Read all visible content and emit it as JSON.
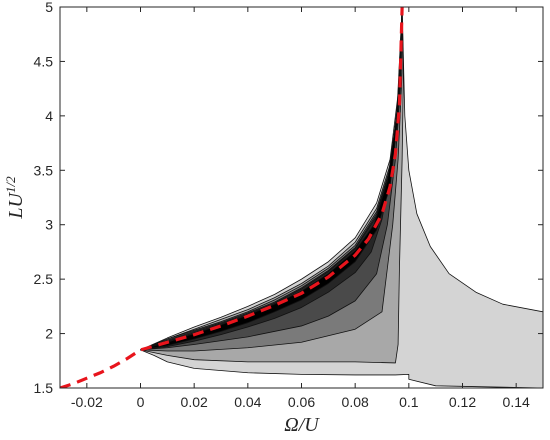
{
  "chart_data": {
    "type": "area",
    "title": "",
    "xlabel": "Ω/U",
    "ylabel_main": "LU",
    "ylabel_exp": "1/2",
    "xlim": [
      -0.03,
      0.15
    ],
    "ylim": [
      1.5,
      5
    ],
    "xticks": [
      -0.02,
      0,
      0.02,
      0.04,
      0.06,
      0.08,
      0.1,
      0.12,
      0.14
    ],
    "xtick_labels": [
      "-0.02",
      "0",
      "0.02",
      "0.04",
      "0.06",
      "0.08",
      "0.1",
      "0.12",
      "0.14"
    ],
    "yticks": [
      1.5,
      2,
      2.5,
      3,
      3.5,
      4,
      4.5,
      5
    ],
    "ytick_labels": [
      "1.5",
      "2",
      "2.5",
      "3",
      "3.5",
      "4",
      "4.5",
      "5"
    ],
    "grid": false,
    "legend": "none",
    "cusp_point": [
      0,
      1.85
    ],
    "contour_levels": [
      {
        "color": "#d4d4d4",
        "lower": [
          [
            0,
            1.85
          ],
          [
            0.005,
            1.8
          ],
          [
            0.01,
            1.74
          ],
          [
            0.02,
            1.68
          ],
          [
            0.04,
            1.64
          ],
          [
            0.06,
            1.625
          ],
          [
            0.08,
            1.62
          ],
          [
            0.095,
            1.62
          ],
          [
            0.1,
            1.625
          ]
        ],
        "upper": [
          [
            0,
            1.85
          ],
          [
            0.01,
            1.96
          ],
          [
            0.02,
            2.06
          ],
          [
            0.03,
            2.15
          ],
          [
            0.04,
            2.25
          ],
          [
            0.05,
            2.36
          ],
          [
            0.06,
            2.5
          ],
          [
            0.07,
            2.66
          ],
          [
            0.08,
            2.88
          ],
          [
            0.088,
            3.2
          ],
          [
            0.093,
            3.6
          ],
          [
            0.096,
            4.2
          ],
          [
            0.0975,
            5.0
          ]
        ],
        "right": [
          [
            0.0975,
            5.0
          ],
          [
            0.0985,
            4.0
          ],
          [
            0.1,
            3.5
          ],
          [
            0.103,
            3.1
          ],
          [
            0.108,
            2.8
          ],
          [
            0.115,
            2.55
          ],
          [
            0.125,
            2.38
          ],
          [
            0.135,
            2.27
          ],
          [
            0.15,
            2.2
          ],
          [
            0.15,
            1.5
          ],
          [
            0.11,
            1.52
          ],
          [
            0.1,
            1.58
          ]
        ]
      },
      {
        "color": "#a8a8a8",
        "lower": [
          [
            0,
            1.85
          ],
          [
            0.01,
            1.8
          ],
          [
            0.02,
            1.76
          ],
          [
            0.04,
            1.74
          ],
          [
            0.06,
            1.74
          ],
          [
            0.08,
            1.74
          ],
          [
            0.095,
            1.73
          ]
        ],
        "upper": [
          [
            0,
            1.85
          ],
          [
            0.01,
            1.95
          ],
          [
            0.02,
            2.04
          ],
          [
            0.03,
            2.13
          ],
          [
            0.04,
            2.22
          ],
          [
            0.05,
            2.33
          ],
          [
            0.06,
            2.46
          ],
          [
            0.07,
            2.62
          ],
          [
            0.08,
            2.84
          ],
          [
            0.088,
            3.15
          ],
          [
            0.093,
            3.55
          ],
          [
            0.0965,
            4.2
          ],
          [
            0.0975,
            5.0
          ]
        ],
        "right": [
          [
            0.0975,
            5.0
          ],
          [
            0.098,
            4.4
          ],
          [
            0.0975,
            3.6
          ],
          [
            0.0965,
            2.6
          ],
          [
            0.096,
            1.9
          ],
          [
            0.095,
            1.73
          ]
        ]
      },
      {
        "color": "#7a7a7a",
        "lower": [
          [
            0,
            1.85
          ],
          [
            0.01,
            1.84
          ],
          [
            0.02,
            1.84
          ],
          [
            0.04,
            1.87
          ],
          [
            0.06,
            1.92
          ],
          [
            0.08,
            2.04
          ],
          [
            0.09,
            2.2
          ]
        ],
        "upper": [
          [
            0,
            1.85
          ],
          [
            0.01,
            1.95
          ],
          [
            0.02,
            2.03
          ],
          [
            0.03,
            2.11
          ],
          [
            0.04,
            2.2
          ],
          [
            0.05,
            2.31
          ],
          [
            0.06,
            2.44
          ],
          [
            0.07,
            2.6
          ],
          [
            0.08,
            2.81
          ],
          [
            0.088,
            3.12
          ],
          [
            0.093,
            3.52
          ],
          [
            0.0965,
            4.2
          ],
          [
            0.0975,
            5.0
          ]
        ],
        "right": [
          [
            0.0975,
            5.0
          ],
          [
            0.0975,
            4.4
          ],
          [
            0.096,
            3.6
          ],
          [
            0.094,
            3.0
          ],
          [
            0.092,
            2.6
          ],
          [
            0.09,
            2.2
          ]
        ]
      },
      {
        "color": "#4a4a4a",
        "lower": [
          [
            0,
            1.85
          ],
          [
            0.01,
            1.87
          ],
          [
            0.02,
            1.9
          ],
          [
            0.04,
            1.97
          ],
          [
            0.06,
            2.07
          ],
          [
            0.07,
            2.16
          ],
          [
            0.08,
            2.3
          ],
          [
            0.088,
            2.55
          ]
        ],
        "upper": [
          [
            0,
            1.85
          ],
          [
            0.01,
            1.94
          ],
          [
            0.02,
            2.02
          ],
          [
            0.03,
            2.1
          ],
          [
            0.04,
            2.19
          ],
          [
            0.05,
            2.29
          ],
          [
            0.06,
            2.42
          ],
          [
            0.07,
            2.58
          ],
          [
            0.08,
            2.79
          ],
          [
            0.088,
            3.1
          ],
          [
            0.093,
            3.5
          ],
          [
            0.0965,
            4.2
          ],
          [
            0.0975,
            5.0
          ]
        ],
        "right": [
          [
            0.0975,
            5.0
          ],
          [
            0.097,
            4.3
          ],
          [
            0.095,
            3.6
          ],
          [
            0.092,
            3.0
          ],
          [
            0.088,
            2.55
          ]
        ]
      },
      {
        "color": "#262626",
        "lower": [
          [
            0,
            1.85
          ],
          [
            0.01,
            1.88
          ],
          [
            0.02,
            1.93
          ],
          [
            0.03,
            1.99
          ],
          [
            0.04,
            2.06
          ],
          [
            0.05,
            2.14
          ],
          [
            0.06,
            2.24
          ],
          [
            0.07,
            2.38
          ],
          [
            0.08,
            2.56
          ],
          [
            0.086,
            2.75
          ]
        ],
        "upper": [
          [
            0,
            1.85
          ],
          [
            0.01,
            1.93
          ],
          [
            0.02,
            2.01
          ],
          [
            0.03,
            2.09
          ],
          [
            0.04,
            2.18
          ],
          [
            0.05,
            2.28
          ],
          [
            0.06,
            2.41
          ],
          [
            0.07,
            2.57
          ],
          [
            0.08,
            2.78
          ],
          [
            0.088,
            3.08
          ],
          [
            0.093,
            3.48
          ],
          [
            0.0962,
            4.2
          ],
          [
            0.0975,
            5.0
          ]
        ],
        "right": [
          [
            0.0975,
            5.0
          ],
          [
            0.0965,
            4.3
          ],
          [
            0.094,
            3.6
          ],
          [
            0.09,
            3.05
          ],
          [
            0.086,
            2.75
          ]
        ]
      },
      {
        "color": "#000000",
        "lower": [
          [
            0,
            1.85
          ],
          [
            0.01,
            1.89
          ],
          [
            0.02,
            1.95
          ],
          [
            0.03,
            2.02
          ],
          [
            0.04,
            2.1
          ],
          [
            0.05,
            2.2
          ],
          [
            0.06,
            2.31
          ],
          [
            0.07,
            2.46
          ],
          [
            0.08,
            2.66
          ],
          [
            0.088,
            2.95
          ],
          [
            0.093,
            3.35
          ],
          [
            0.096,
            4.0
          ],
          [
            0.0975,
            5.0
          ]
        ],
        "upper": [
          [
            0,
            1.85
          ],
          [
            0.01,
            1.92
          ],
          [
            0.02,
            2.0
          ],
          [
            0.03,
            2.08
          ],
          [
            0.04,
            2.17
          ],
          [
            0.05,
            2.27
          ],
          [
            0.06,
            2.39
          ],
          [
            0.07,
            2.55
          ],
          [
            0.08,
            2.76
          ],
          [
            0.087,
            3.0
          ],
          [
            0.092,
            3.4
          ],
          [
            0.0955,
            4.0
          ],
          [
            0.0975,
            5.0
          ]
        ],
        "right": []
      }
    ],
    "series": [
      {
        "style": "dashed",
        "color": "#e8141c",
        "x": [
          -0.03,
          -0.025,
          -0.02,
          -0.015,
          -0.01,
          -0.005,
          0,
          0.01,
          0.02,
          0.03,
          0.04,
          0.05,
          0.06,
          0.07,
          0.08,
          0.085,
          0.09,
          0.093,
          0.095,
          0.0965,
          0.0975
        ],
        "y": [
          1.5,
          1.54,
          1.59,
          1.64,
          1.7,
          1.77,
          1.85,
          1.92,
          1.99,
          2.07,
          2.16,
          2.26,
          2.37,
          2.52,
          2.72,
          2.87,
          3.1,
          3.35,
          3.65,
          4.1,
          5.0
        ]
      }
    ]
  }
}
